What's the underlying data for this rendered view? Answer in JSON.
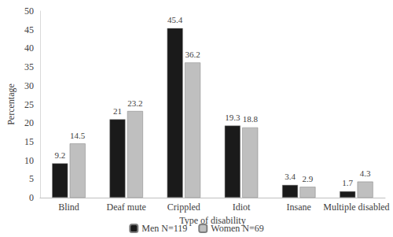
{
  "chart_data": {
    "type": "bar",
    "xlabel": "Type of disability",
    "ylabel": "Percentage",
    "categories": [
      "Blind",
      "Deaf mute",
      "Crippled",
      "Idiot",
      "Insane",
      "Multiple disabled"
    ],
    "series": [
      {
        "name": "Men N=119",
        "color": "#1a1a1a",
        "values": [
          9.2,
          21,
          45.4,
          19.3,
          3.4,
          1.7
        ]
      },
      {
        "name": "Women N=69",
        "color": "#bfbfbf",
        "values": [
          14.5,
          23.2,
          36.2,
          18.8,
          2.9,
          4.3
        ]
      }
    ],
    "ylim": [
      0,
      50
    ],
    "yticks": [
      0,
      5,
      10,
      15,
      20,
      25,
      30,
      35,
      40,
      45,
      50
    ],
    "grid": false,
    "legend": "bottom",
    "data_labels": true
  }
}
